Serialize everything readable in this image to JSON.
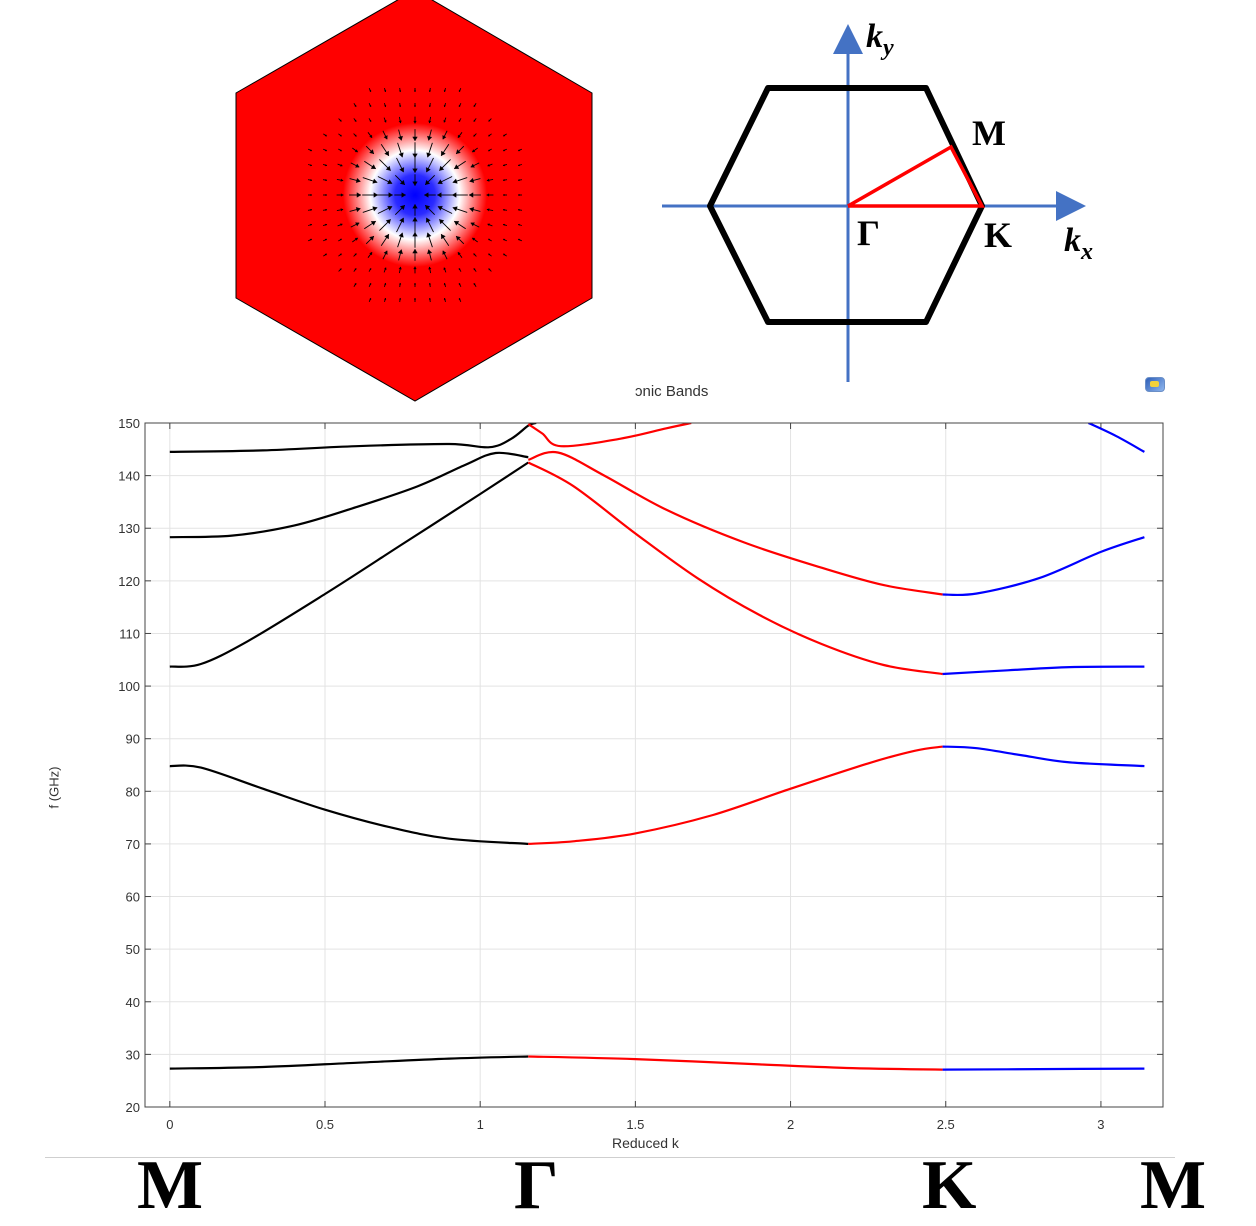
{
  "bz_labels": {
    "ky_main": "k",
    "ky_sub": "y",
    "kx_main": "k",
    "kx_sub": "x",
    "M": "M",
    "Gamma": "Γ",
    "K": "K"
  },
  "bottom_labels": [
    "M",
    "Γ",
    "K",
    "M"
  ],
  "chart_data": {
    "type": "line",
    "title": "ɔnic Bands",
    "xlabel": "Reduced k",
    "ylabel": "f (GHz)",
    "xlim": [
      -0.08,
      3.2
    ],
    "ylim": [
      20,
      150
    ],
    "xticks": [
      0,
      0.5,
      1,
      1.5,
      2,
      2.5,
      3
    ],
    "xtick_labels": [
      "0",
      "0.5",
      "1",
      "1.5",
      "2",
      "2.5",
      "3"
    ],
    "yticks": [
      20,
      30,
      40,
      50,
      60,
      70,
      80,
      90,
      100,
      110,
      120,
      130,
      140,
      150
    ],
    "ytick_labels": [
      "20",
      "30",
      "40",
      "50",
      "60",
      "70",
      "80",
      "90",
      "100",
      "110",
      "120",
      "130",
      "140",
      "150"
    ],
    "grid": true,
    "segment_colors": {
      "M-Gamma": "#000000",
      "Gamma-K": "#ff0000",
      "K-M": "#0000ff"
    },
    "series": [
      {
        "color": "#000000",
        "points": [
          [
            0,
            27.3
          ],
          [
            0.3,
            27.6
          ],
          [
            0.6,
            28.4
          ],
          [
            0.9,
            29.2
          ],
          [
            1.155,
            29.6
          ]
        ]
      },
      {
        "color": "#ff0000",
        "points": [
          [
            1.155,
            29.6
          ],
          [
            1.5,
            29.1
          ],
          [
            1.9,
            28.1
          ],
          [
            2.2,
            27.4
          ],
          [
            2.49,
            27.1
          ]
        ]
      },
      {
        "color": "#0000ff",
        "points": [
          [
            2.49,
            27.1
          ],
          [
            2.8,
            27.2
          ],
          [
            3.14,
            27.3
          ]
        ]
      },
      {
        "color": "#000000",
        "points": [
          [
            0,
            84.8
          ],
          [
            0.1,
            84.5
          ],
          [
            0.3,
            80.5
          ],
          [
            0.5,
            76.5
          ],
          [
            0.7,
            73.3
          ],
          [
            0.9,
            71.0
          ],
          [
            1.155,
            70.0
          ]
        ]
      },
      {
        "color": "#ff0000",
        "points": [
          [
            1.155,
            70.0
          ],
          [
            1.3,
            70.5
          ],
          [
            1.5,
            72.0
          ],
          [
            1.75,
            75.5
          ],
          [
            2.0,
            80.5
          ],
          [
            2.25,
            85.3
          ],
          [
            2.4,
            87.7
          ],
          [
            2.49,
            88.5
          ]
        ]
      },
      {
        "color": "#0000ff",
        "points": [
          [
            2.49,
            88.5
          ],
          [
            2.6,
            88.2
          ],
          [
            2.75,
            86.8
          ],
          [
            2.9,
            85.5
          ],
          [
            3.14,
            84.8
          ]
        ]
      },
      {
        "color": "#000000",
        "points": [
          [
            0,
            103.7
          ],
          [
            0.1,
            104.2
          ],
          [
            0.25,
            108.5
          ],
          [
            0.5,
            117.5
          ],
          [
            0.75,
            127.0
          ],
          [
            1.0,
            136.5
          ],
          [
            1.155,
            142.5
          ]
        ]
      },
      {
        "color": "#ff0000",
        "points": [
          [
            1.155,
            142.5
          ],
          [
            1.3,
            138.0
          ],
          [
            1.5,
            129.0
          ],
          [
            1.7,
            120.5
          ],
          [
            1.9,
            113.5
          ],
          [
            2.1,
            108.0
          ],
          [
            2.3,
            104.0
          ],
          [
            2.49,
            102.3
          ]
        ]
      },
      {
        "color": "#0000ff",
        "points": [
          [
            2.49,
            102.3
          ],
          [
            2.7,
            103.0
          ],
          [
            2.9,
            103.6
          ],
          [
            3.14,
            103.7
          ]
        ]
      },
      {
        "color": "#000000",
        "points": [
          [
            0,
            128.3
          ],
          [
            0.2,
            128.6
          ],
          [
            0.4,
            130.5
          ],
          [
            0.6,
            134.0
          ],
          [
            0.8,
            138.0
          ],
          [
            0.95,
            142.0
          ],
          [
            1.05,
            144.3
          ],
          [
            1.155,
            143.5
          ]
        ]
      },
      {
        "color": "#ff0000",
        "points": [
          [
            1.155,
            143.0
          ],
          [
            1.25,
            144.4
          ],
          [
            1.4,
            140.0
          ],
          [
            1.6,
            133.5
          ],
          [
            1.85,
            127.3
          ],
          [
            2.1,
            122.5
          ],
          [
            2.3,
            119.2
          ],
          [
            2.49,
            117.4
          ]
        ]
      },
      {
        "color": "#0000ff",
        "points": [
          [
            2.49,
            117.4
          ],
          [
            2.6,
            117.6
          ],
          [
            2.8,
            120.5
          ],
          [
            3.0,
            125.5
          ],
          [
            3.14,
            128.3
          ]
        ]
      },
      {
        "color": "#000000",
        "points": [
          [
            0,
            144.5
          ],
          [
            0.3,
            144.8
          ],
          [
            0.6,
            145.6
          ],
          [
            0.9,
            146.0
          ],
          [
            1.03,
            145.4
          ],
          [
            1.1,
            147.0
          ],
          [
            1.155,
            149.5
          ],
          [
            1.18,
            150
          ]
        ]
      },
      {
        "color": "#ff0000",
        "points": [
          [
            1.155,
            149.8
          ],
          [
            1.2,
            148.0
          ],
          [
            1.26,
            145.6
          ],
          [
            1.45,
            147.0
          ],
          [
            1.6,
            149.0
          ],
          [
            1.68,
            150
          ]
        ]
      },
      {
        "color": "#0000ff",
        "points": [
          [
            2.96,
            150
          ],
          [
            3.05,
            147.5
          ],
          [
            3.14,
            144.5
          ]
        ]
      }
    ]
  }
}
